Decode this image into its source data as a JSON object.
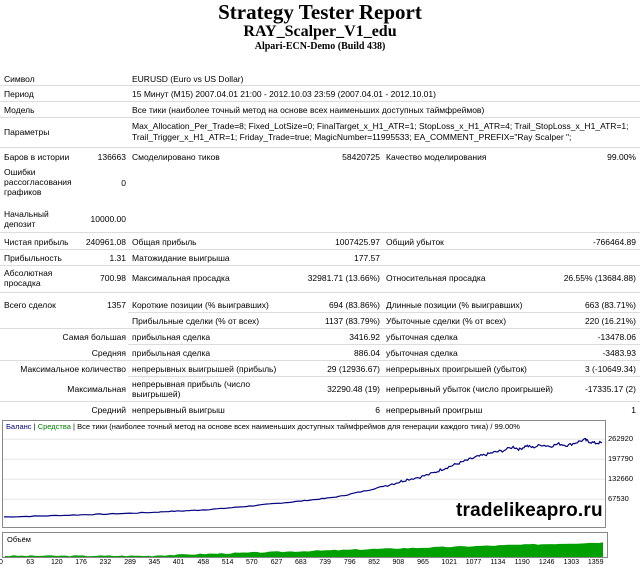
{
  "header": {
    "title": "Strategy Tester Report",
    "expert": "RAY_Scalper_V1_edu",
    "server": "Alpari-ECN-Demo (Build 438)"
  },
  "info": {
    "symbol_label": "Символ",
    "symbol_value": "EURUSD (Euro vs US Dollar)",
    "period_label": "Период",
    "period_value": "15 Минут (M15) 2007.04.01 21:00 - 2012.10.03 23:59 (2007.04.01 - 2012.10.01)",
    "model_label": "Модель",
    "model_value": "Все тики (наиболее точный метод на основе всех наименьших доступных таймфреймов)",
    "params_label": "Параметры",
    "params_value": "Max_Allocation_Per_Trade=8; Fixed_LotSize=0; FinalTarget_x_H1_ATR=1; StopLoss_x_H1_ATR=4; Trail_StopLoss_x_H1_ATR=1; Trail_Trigger_x_H1_ATR=1; Friday_Trade=true; MagicNumber=11995533; EA_COMMENT_PREFIX=\"Ray Scalper \";"
  },
  "stats": {
    "bars_label": "Баров в истории",
    "bars_value": "136663",
    "ticks_label": "Смоделировано тиков",
    "ticks_value": "58420725",
    "quality_label": "Качество моделирования",
    "quality_value": "99.00%",
    "errors_label": "Ошибки рассогласования графиков",
    "errors_value": "0",
    "deposit_label": "Начальный депозит",
    "deposit_value": "10000.00",
    "net_label": "Чистая прибыль",
    "net_value": "240961.08",
    "gross_profit_label": "Общая прибыль",
    "gross_profit_value": "1007425.97",
    "gross_loss_label": "Общий убыток",
    "gross_loss_value": "-766464.89",
    "pf_label": "Прибыльность",
    "pf_value": "1.31",
    "expected_label": "Матожидание выигрыша",
    "expected_value": "177.57",
    "abs_dd_label": "Абсолютная просадка",
    "abs_dd_value": "700.98",
    "max_dd_label": "Максимальная просадка",
    "max_dd_value": "32981.71 (13.66%)",
    "rel_dd_label": "Относительная просадка",
    "rel_dd_value": "26.55% (13684.88)",
    "total_label": "Всего сделок",
    "total_value": "1357",
    "short_label": "Короткие позиции (% выигравших)",
    "short_value": "694 (83.86%)",
    "long_label": "Длинные позиции (% выигравших)",
    "long_value": "663 (83.71%)",
    "profit_trades_label": "Прибыльные сделки (% от всех)",
    "profit_trades_value": "1137 (83.79%)",
    "loss_trades_label": "Убыточные сделки (% от всех)",
    "loss_trades_value": "220 (16.21%)",
    "largest_label": "Самая большая",
    "largest_profit_label": "прибыльная сделка",
    "largest_profit_value": "3416.92",
    "largest_loss_label": "убыточная сделка",
    "largest_loss_value": "-13478.06",
    "average_label": "Средняя",
    "average_profit_label": "прибыльная сделка",
    "average_profit_value": "886.04",
    "average_loss_label": "убыточная сделка",
    "average_loss_value": "-3483.93",
    "maxcount_label": "Максимальное количество",
    "maxcount_wins_label": "непрерывных выигрышей (прибыль)",
    "maxcount_wins_value": "29 (12936.67)",
    "maxcount_losses_label": "непрерывных проигрышей (убыток)",
    "maxcount_losses_value": "3 (-10649.34)",
    "maximal_label": "Максимальная",
    "maximal_profit_label": "непрерывная прибыль (число выигрышей)",
    "maximal_profit_value": "32290.48 (19)",
    "maximal_loss_label": "непрерывный убыток (число проигрышей)",
    "maximal_loss_value": "-17335.17 (2)",
    "avg_cons_label": "Средний",
    "avg_cons_wins_label": "непрерывный выигрыш",
    "avg_cons_wins_value": "6",
    "avg_cons_losses_label": "непрерывный проигрыш",
    "avg_cons_losses_value": "1"
  },
  "chart_data": {
    "type": "line",
    "legend": {
      "balance": "Баланс",
      "equity": "Средства",
      "description": "Все тики (наиболее точный метод на основе всех наименьших доступных таймфреймов для генерации каждого тика) / 99.00%"
    },
    "y_ticks": [
      "262920",
      "197790",
      "132660",
      "67530"
    ],
    "y_values": [
      262920,
      197790,
      132660,
      67530
    ],
    "x_ticks": [
      "0",
      "63",
      "120",
      "176",
      "232",
      "289",
      "345",
      "401",
      "458",
      "514",
      "570",
      "627",
      "683",
      "739",
      "796",
      "852",
      "908",
      "965",
      "1021",
      "1077",
      "1134",
      "1190",
      "1246",
      "1303",
      "1359"
    ],
    "x_max": 1380,
    "y_min": 0,
    "y_max": 280000,
    "balance": [
      [
        0,
        10000
      ],
      [
        60,
        12000
      ],
      [
        120,
        14500
      ],
      [
        180,
        17000
      ],
      [
        230,
        19000
      ],
      [
        290,
        22000
      ],
      [
        345,
        25000
      ],
      [
        380,
        28000
      ],
      [
        420,
        30000
      ],
      [
        460,
        33000
      ],
      [
        500,
        37000
      ],
      [
        540,
        42000
      ],
      [
        580,
        47000
      ],
      [
        620,
        53000
      ],
      [
        660,
        58000
      ],
      [
        700,
        64000
      ],
      [
        740,
        70000
      ],
      [
        780,
        78000
      ],
      [
        810,
        88000
      ],
      [
        850,
        100000
      ],
      [
        880,
        112000
      ],
      [
        910,
        123000
      ],
      [
        930,
        132000
      ],
      [
        960,
        140000
      ],
      [
        990,
        152000
      ],
      [
        1010,
        165000
      ],
      [
        1030,
        175000
      ],
      [
        1050,
        185000
      ],
      [
        1070,
        195000
      ],
      [
        1090,
        205000
      ],
      [
        1110,
        212000
      ],
      [
        1130,
        220000
      ],
      [
        1150,
        225000
      ],
      [
        1175,
        238000
      ],
      [
        1190,
        230000
      ],
      [
        1205,
        242000
      ],
      [
        1220,
        236000
      ],
      [
        1240,
        245000
      ],
      [
        1260,
        240000
      ],
      [
        1280,
        248000
      ],
      [
        1300,
        243000
      ],
      [
        1320,
        252000
      ],
      [
        1340,
        262000
      ],
      [
        1350,
        255000
      ],
      [
        1365,
        250000
      ],
      [
        1380,
        252000
      ]
    ],
    "volume_label": "Объём"
  },
  "watermark": "tradelikeapro.ru"
}
